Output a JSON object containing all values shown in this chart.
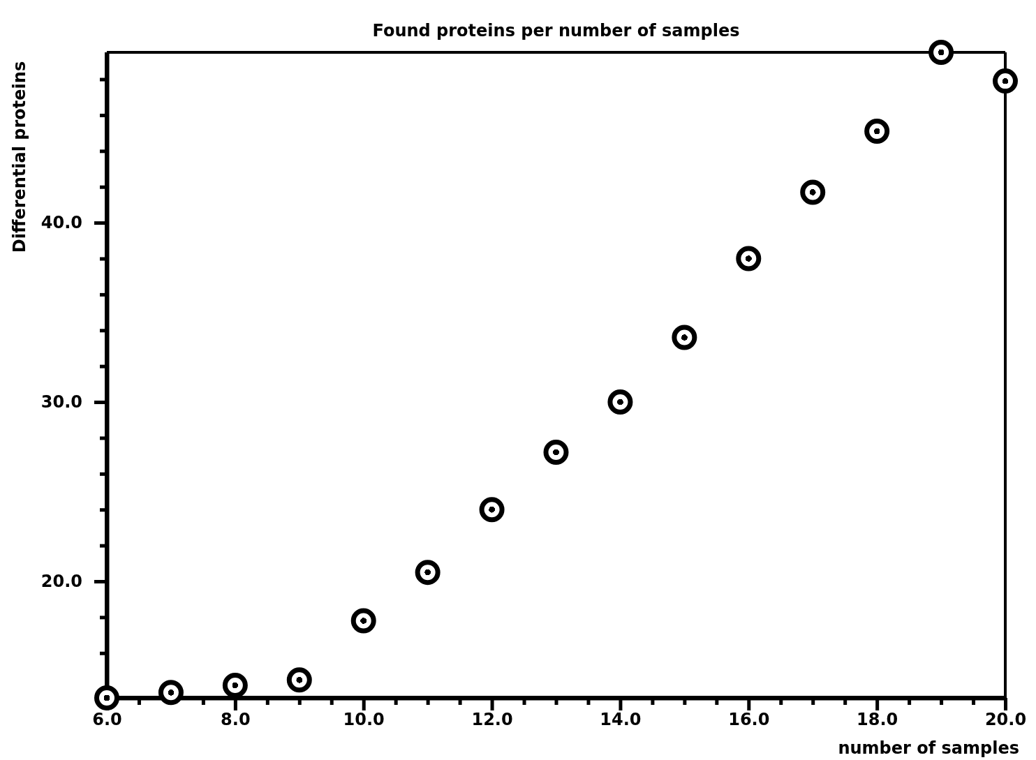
{
  "chart_data": {
    "type": "scatter",
    "title": "Found proteins per number of samples",
    "xlabel": "number of samples",
    "ylabel": "Differential proteins",
    "x": [
      6,
      7,
      8,
      9,
      10,
      11,
      12,
      13,
      14,
      15,
      16,
      17,
      18,
      19,
      20
    ],
    "values": [
      13.5,
      13.8,
      14.2,
      14.5,
      17.8,
      20.5,
      24.0,
      27.2,
      30.0,
      33.6,
      38.0,
      41.7,
      45.1,
      49.5,
      47.9
    ],
    "color": "#000000",
    "marker": "circle",
    "grid": false,
    "legend": false,
    "xlim": [
      6,
      20
    ],
    "ylim": [
      13.5,
      49.5
    ],
    "xticks": [
      {
        "value": 6,
        "label": "6.0"
      },
      {
        "value": 6.5,
        "label": null
      },
      {
        "value": 7,
        "label": null
      },
      {
        "value": 7.5,
        "label": null
      },
      {
        "value": 8,
        "label": "8.0"
      },
      {
        "value": 8.5,
        "label": null
      },
      {
        "value": 9,
        "label": null
      },
      {
        "value": 9.5,
        "label": null
      },
      {
        "value": 10,
        "label": "10.0"
      },
      {
        "value": 10.5,
        "label": null
      },
      {
        "value": 11,
        "label": null
      },
      {
        "value": 11.5,
        "label": null
      },
      {
        "value": 12,
        "label": "12.0"
      },
      {
        "value": 12.5,
        "label": null
      },
      {
        "value": 13,
        "label": null
      },
      {
        "value": 13.5,
        "label": null
      },
      {
        "value": 14,
        "label": "14.0"
      },
      {
        "value": 14.5,
        "label": null
      },
      {
        "value": 15,
        "label": null
      },
      {
        "value": 15.5,
        "label": null
      },
      {
        "value": 16,
        "label": "16.0"
      },
      {
        "value": 16.5,
        "label": null
      },
      {
        "value": 17,
        "label": null
      },
      {
        "value": 17.5,
        "label": null
      },
      {
        "value": 18,
        "label": "18.0"
      },
      {
        "value": 18.5,
        "label": null
      },
      {
        "value": 19,
        "label": null
      },
      {
        "value": 19.5,
        "label": null
      },
      {
        "value": 20,
        "label": "20.0"
      }
    ],
    "yticks": [
      {
        "value": 16,
        "label": null
      },
      {
        "value": 18,
        "label": null
      },
      {
        "value": 20,
        "label": "20.0"
      },
      {
        "value": 22,
        "label": null
      },
      {
        "value": 24,
        "label": null
      },
      {
        "value": 26,
        "label": null
      },
      {
        "value": 28,
        "label": null
      },
      {
        "value": 30,
        "label": "30.0"
      },
      {
        "value": 32,
        "label": null
      },
      {
        "value": 34,
        "label": null
      },
      {
        "value": 36,
        "label": null
      },
      {
        "value": 38,
        "label": null
      },
      {
        "value": 40,
        "label": "40.0"
      },
      {
        "value": 42,
        "label": null
      },
      {
        "value": 44,
        "label": null
      },
      {
        "value": 46,
        "label": null
      },
      {
        "value": 48,
        "label": null
      }
    ]
  }
}
